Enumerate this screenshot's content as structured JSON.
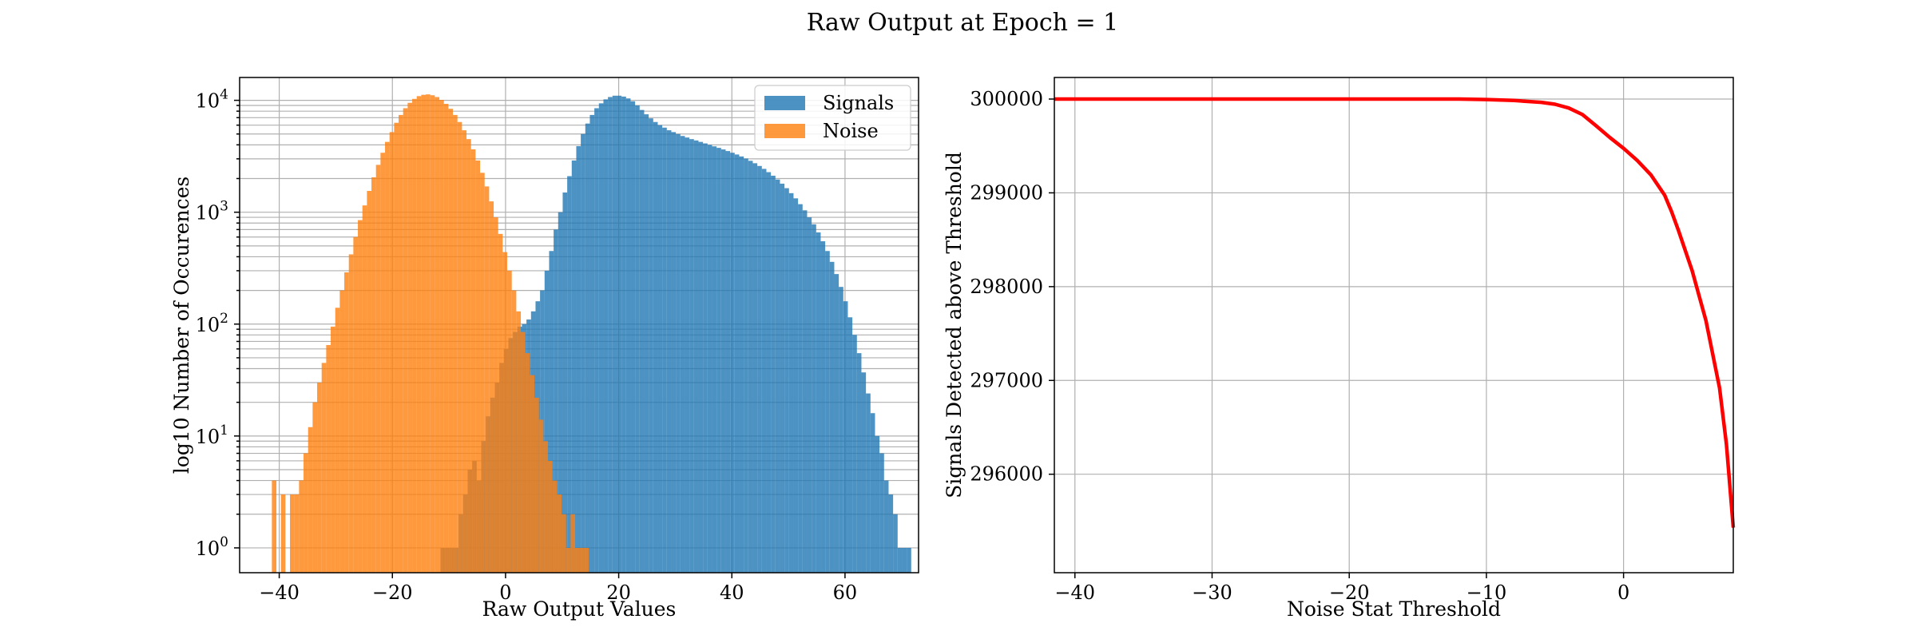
{
  "suptitle": "Raw Output at Epoch = 1",
  "chart_data": [
    {
      "type": "histogram",
      "xlabel": "Raw Output Values",
      "ylabel": "log10 Number of Occurences",
      "yscale": "log",
      "xlim": [
        -47,
        73
      ],
      "ylim": [
        0.6,
        16000
      ],
      "xticks": [
        -40,
        -20,
        0,
        20,
        40,
        60
      ],
      "yticks": [
        {
          "value": 1,
          "base": "10",
          "exp": "0"
        },
        {
          "value": 10,
          "base": "10",
          "exp": "1"
        },
        {
          "value": 100,
          "base": "10",
          "exp": "2"
        },
        {
          "value": 1000,
          "base": "10",
          "exp": "3"
        },
        {
          "value": 10000,
          "base": "10",
          "exp": "4"
        }
      ],
      "grid": true,
      "legend_position": "upper right",
      "series": [
        {
          "name": "Signals",
          "color": "#1f77b4",
          "bin_start": -11.5,
          "bin_width": 0.8,
          "counts": [
            1,
            1,
            1,
            1,
            2,
            3,
            5,
            6,
            4,
            9,
            15,
            22,
            30,
            45,
            60,
            75,
            85,
            95,
            100,
            110,
            130,
            160,
            200,
            300,
            450,
            700,
            1000,
            1500,
            2100,
            2900,
            3900,
            5000,
            6200,
            7400,
            8500,
            9400,
            10200,
            10700,
            11000,
            11000,
            10800,
            10400,
            9800,
            9000,
            8200,
            7500,
            6900,
            6400,
            6000,
            5700,
            5400,
            5200,
            5000,
            4800,
            4650,
            4500,
            4380,
            4250,
            4120,
            4000,
            3880,
            3760,
            3640,
            3520,
            3400,
            3280,
            3150,
            3020,
            2880,
            2740,
            2590,
            2440,
            2280,
            2120,
            1960,
            1800,
            1640,
            1480,
            1330,
            1180,
            1040,
            900,
            780,
            660,
            550,
            450,
            360,
            280,
            215,
            160,
            115,
            80,
            55,
            37,
            24,
            16,
            10,
            7,
            4,
            3,
            2,
            1,
            1,
            1
          ]
        },
        {
          "name": "Noise",
          "color": "#ff7f0e",
          "bin_start": -41.3,
          "bin_width": 0.8,
          "counts": [
            4,
            0,
            3,
            0,
            3,
            3,
            4,
            7,
            12,
            20,
            30,
            45,
            65,
            95,
            140,
            200,
            290,
            420,
            600,
            850,
            1150,
            1550,
            2050,
            2650,
            3400,
            4250,
            5200,
            6300,
            7400,
            8500,
            9500,
            10300,
            10900,
            11200,
            11300,
            11100,
            10700,
            10100,
            9300,
            8400,
            7400,
            6400,
            5400,
            4500,
            3650,
            2900,
            2250,
            1700,
            1250,
            900,
            640,
            440,
            300,
            200,
            130,
            85,
            55,
            35,
            22,
            14,
            9,
            6,
            4,
            3,
            2,
            1,
            2,
            1,
            1,
            1
          ]
        }
      ]
    },
    {
      "type": "line",
      "xlabel": "Noise Stat Threshold",
      "ylabel": "Signals Detected above Threshold",
      "xlim": [
        -41.5,
        8
      ],
      "ylim": [
        294950,
        300230
      ],
      "xticks": [
        -40,
        -30,
        -20,
        -10,
        0
      ],
      "yticks": [
        296000,
        297000,
        298000,
        299000,
        300000
      ],
      "grid": true,
      "series": [
        {
          "name": "",
          "color": "#ff0000",
          "x": [
            -41.5,
            -20,
            -12,
            -10,
            -8,
            -6,
            -5,
            -4,
            -3,
            -2,
            -1,
            0,
            1,
            2,
            3,
            3.5,
            4,
            5,
            6,
            7,
            7.5,
            8
          ],
          "y": [
            300000,
            300000,
            300000,
            299995,
            299985,
            299965,
            299945,
            299905,
            299835,
            299715,
            299590,
            299475,
            299345,
            299190,
            298975,
            298800,
            298600,
            298170,
            297640,
            296920,
            296320,
            295430
          ]
        }
      ]
    }
  ]
}
